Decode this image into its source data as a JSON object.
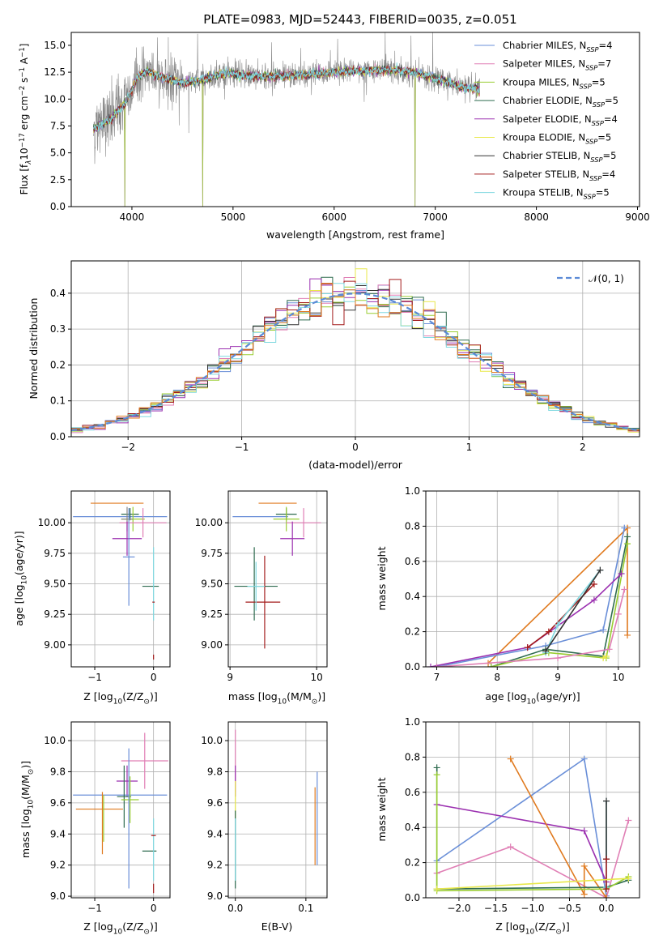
{
  "chart_data": [
    {
      "id": "spectrum",
      "type": "line",
      "title": "PLATE=0983, MJD=52443, FIBERID=0035, z=0.051",
      "xlabel": "wavelength [Angstrom, rest frame]",
      "ylabel": "Flux [f_λ 10^-17 erg cm^-2 s^-1 A^-1]",
      "ylabel_parts": {
        "main": "Flux [f",
        "lambda": "λ",
        "ten": "10",
        "exp1": "−17",
        "mid": " erg cm",
        "exp2": "−2",
        "s": " s",
        "exp3": "−1",
        "a": " A",
        "exp4": "−1",
        "end": "]"
      },
      "xlim": [
        3400,
        9020
      ],
      "ylim": [
        0,
        16.2
      ],
      "xticks": [
        4000,
        5000,
        6000,
        7000,
        8000,
        9000
      ],
      "yticks": [
        0.0,
        2.5,
        5.0,
        7.5,
        10.0,
        12.5,
        15.0
      ],
      "ytick_labels": [
        "0.0",
        "2.5",
        "5.0",
        "7.5",
        "10.0",
        "12.5",
        "15.0"
      ],
      "legend_position": "top-right",
      "legend": [
        {
          "name": "Chabrier MILES",
          "nssp": "4",
          "color": "#6a8fd8"
        },
        {
          "name": "Salpeter MILES",
          "nssp": "7",
          "color": "#e07fb5"
        },
        {
          "name": "Kroupa MILES",
          "nssp": "5",
          "color": "#9acd32"
        },
        {
          "name": "Chabrier ELODIE",
          "nssp": "5",
          "color": "#2e6b4f"
        },
        {
          "name": "Salpeter ELODIE",
          "nssp": "4",
          "color": "#9b30b0"
        },
        {
          "name": "Kroupa ELODIE",
          "nssp": "5",
          "color": "#e8e84a"
        },
        {
          "name": "Chabrier STELIB",
          "nssp": "5",
          "color": "#333333"
        },
        {
          "name": "Salpeter STELIB",
          "nssp": "4",
          "color": "#a31b1b"
        },
        {
          "name": "Kroupa STELIB",
          "nssp": "5",
          "color": "#7fd8e0"
        }
      ],
      "observed_data_color": "#888888",
      "model_trend": [
        [
          3620,
          7.2
        ],
        [
          3800,
          8.2
        ],
        [
          3950,
          9.8
        ],
        [
          4050,
          12.0
        ],
        [
          4150,
          12.6
        ],
        [
          4300,
          12.0
        ],
        [
          4500,
          11.5
        ],
        [
          4700,
          11.8
        ],
        [
          4900,
          12.4
        ],
        [
          5100,
          12.2
        ],
        [
          5300,
          12.1
        ],
        [
          5600,
          12.2
        ],
        [
          5900,
          12.4
        ],
        [
          6200,
          12.6
        ],
        [
          6500,
          12.7
        ],
        [
          6700,
          12.6
        ],
        [
          6900,
          12.2
        ],
        [
          7100,
          11.6
        ],
        [
          7300,
          11.0
        ],
        [
          7430,
          10.9
        ]
      ],
      "dips": [
        [
          3930,
          0.0
        ],
        [
          4700,
          0.0
        ],
        [
          6800,
          0.0
        ]
      ]
    },
    {
      "id": "residuals",
      "type": "histogram",
      "xlabel": "(data-model)/error",
      "ylabel": "Normed distribution",
      "xlim": [
        -2.5,
        2.5
      ],
      "ylim": [
        0,
        0.49
      ],
      "xticks": [
        -2,
        -1,
        0,
        1,
        2
      ],
      "xtick_labels": [
        "−2",
        "−1",
        "0",
        "1",
        "2"
      ],
      "yticks": [
        0.0,
        0.1,
        0.2,
        0.3,
        0.4
      ],
      "ytick_labels": [
        "0.0",
        "0.1",
        "0.2",
        "0.3",
        "0.4"
      ],
      "bin_width": 0.1,
      "legend": [
        {
          "name": "𝒩(0, 1)",
          "style": "dashed",
          "color": "#5b8ad6"
        }
      ],
      "legend_position": "top-right",
      "reference_curve": "standard normal pdf"
    },
    {
      "id": "age-vs-z",
      "type": "errorbar",
      "xlabel": "Z [log10(Z/Z⊙)]",
      "xlabel_parts": {
        "pre": "Z [log",
        "sub": "10",
        "mid": "(Z/Z",
        "sun": "⊙",
        "end": ")]"
      },
      "ylabel": "age [log10(age/yr)]",
      "ylabel_parts": {
        "pre": "age  [log",
        "sub": "10",
        "mid": "(age/yr)]"
      },
      "xlim": [
        -1.4,
        0.28
      ],
      "ylim": [
        8.82,
        10.26
      ],
      "xticks": [
        -1,
        0
      ],
      "xtick_labels": [
        "−1",
        "0"
      ],
      "yticks": [
        9.0,
        9.25,
        9.5,
        9.75,
        10.0
      ],
      "ytick_labels": [
        "9.00",
        "9.25",
        "9.50",
        "9.75",
        "10.00"
      ],
      "points": [
        {
          "x": -0.62,
          "y": 10.16,
          "xerr": 0.45,
          "yerr": 0.0,
          "color": "#e07a1f"
        },
        {
          "x": -0.57,
          "y": 10.05,
          "xerr": 0.8,
          "yerr": 0.0,
          "color": "#6a8fd8"
        },
        {
          "x": -0.4,
          "y": 10.07,
          "xerr": 0.15,
          "yerr": 0.05,
          "color": "#2e6b4f"
        },
        {
          "x": -0.35,
          "y": 10.03,
          "xerr": 0.2,
          "yerr": 0.1,
          "color": "#9acd32"
        },
        {
          "x": -0.18,
          "y": 10.0,
          "xerr": 0.4,
          "yerr": 0.12,
          "color": "#e07fb5"
        },
        {
          "x": -0.45,
          "y": 10.03,
          "xerr": 0.1,
          "yerr": 0.1,
          "color": "#888888"
        },
        {
          "x": -0.45,
          "y": 9.87,
          "xerr": 0.25,
          "yerr": 0.14,
          "color": "#9b30b0"
        },
        {
          "x": -0.42,
          "y": 9.72,
          "xerr": 0.1,
          "yerr": 0.4,
          "color": "#6a8fd8"
        },
        {
          "x": -0.05,
          "y": 9.48,
          "xerr": 0.14,
          "yerr": 0.0,
          "color": "#2e6b4f"
        },
        {
          "x": 0.0,
          "y": 9.5,
          "xerr": 0.0,
          "yerr": 0.3,
          "color": "#7fd8e0"
        },
        {
          "x": 0.0,
          "y": 9.35,
          "xerr": 0.02,
          "yerr": 0.0,
          "color": "#a31b1b"
        },
        {
          "x": 0.0,
          "y": 8.9,
          "xerr": 0.0,
          "yerr": 0.02,
          "color": "#a31b1b"
        }
      ]
    },
    {
      "id": "age-vs-mass",
      "type": "errorbar",
      "xlabel": "mass [log10(M/M⊙)]",
      "xlabel_parts": {
        "pre": "mass [log",
        "sub": "10",
        "mid": "(M/M",
        "sun": "⊙",
        "end": ")]"
      },
      "xlim": [
        8.98,
        10.12
      ],
      "ylim": [
        8.82,
        10.26
      ],
      "xticks": [
        9,
        10
      ],
      "xtick_labels": [
        "9",
        "10"
      ],
      "yticks": [
        9.0,
        9.25,
        9.5,
        9.75,
        10.0
      ],
      "ytick_labels": [
        "9.00",
        "9.25",
        "9.50",
        "9.75",
        "10.00"
      ],
      "points": [
        {
          "x": 9.55,
          "y": 10.16,
          "xerr": 0.22,
          "yerr": 0.0,
          "color": "#e07a1f"
        },
        {
          "x": 9.35,
          "y": 10.05,
          "xerr": 0.32,
          "yerr": 0.0,
          "color": "#6a8fd8"
        },
        {
          "x": 9.65,
          "y": 10.07,
          "xerr": 0.12,
          "yerr": 0.05,
          "color": "#2e6b4f"
        },
        {
          "x": 9.65,
          "y": 10.03,
          "xerr": 0.15,
          "yerr": 0.1,
          "color": "#9acd32"
        },
        {
          "x": 9.85,
          "y": 10.0,
          "xerr": 0.2,
          "yerr": 0.12,
          "color": "#e07fb5"
        },
        {
          "x": 9.72,
          "y": 9.87,
          "xerr": 0.14,
          "yerr": 0.14,
          "color": "#9b30b0"
        },
        {
          "x": 9.3,
          "y": 9.48,
          "xerr": 0.25,
          "yerr": 0.0,
          "color": "#2e6b4f"
        },
        {
          "x": 9.28,
          "y": 9.5,
          "xerr": 0.0,
          "yerr": 0.3,
          "color": "#2e6b4f"
        },
        {
          "x": 9.38,
          "y": 9.35,
          "xerr": 0.2,
          "yerr": 0.0,
          "color": "#a31b1b"
        },
        {
          "x": 9.4,
          "y": 9.35,
          "xerr": 0.0,
          "yerr": 0.38,
          "color": "#a31b1b"
        },
        {
          "x": 9.3,
          "y": 9.48,
          "xerr": 0.1,
          "yerr": 0.2,
          "color": "#7fd8e0"
        }
      ]
    },
    {
      "id": "massweight-vs-age",
      "type": "line",
      "xlabel": "age [log10(age/yr)]",
      "xlabel_parts": {
        "pre": "age  [log",
        "sub": "10",
        "mid": "(age/yr)]"
      },
      "ylabel": "mass weight",
      "xlim": [
        6.82,
        10.35
      ],
      "ylim": [
        0,
        1.0
      ],
      "xticks": [
        7,
        8,
        9,
        10
      ],
      "xtick_labels": [
        "7",
        "8",
        "9",
        "10"
      ],
      "yticks": [
        0.0,
        0.2,
        0.4,
        0.6,
        0.8,
        1.0
      ],
      "ytick_labels": [
        "0.0",
        "0.2",
        "0.4",
        "0.6",
        "0.8",
        "1.0"
      ],
      "series": [
        {
          "color": "#e07a1f",
          "x": [
            7.85,
            10.15,
            10.15
          ],
          "y": [
            0.02,
            0.79,
            0.18
          ]
        },
        {
          "color": "#6a8fd8",
          "x": [
            7.0,
            8.8,
            9.75,
            10.1
          ],
          "y": [
            0.0,
            0.12,
            0.21,
            0.79
          ]
        },
        {
          "color": "#2e6b4f",
          "x": [
            7.9,
            8.8,
            9.75,
            10.15
          ],
          "y": [
            0.0,
            0.1,
            0.06,
            0.74
          ]
        },
        {
          "color": "#9acd32",
          "x": [
            7.9,
            8.85,
            9.8,
            10.15
          ],
          "y": [
            0.0,
            0.08,
            0.05,
            0.7
          ]
        },
        {
          "color": "#9b30b0",
          "x": [
            6.9,
            8.5,
            9.6,
            10.05
          ],
          "y": [
            0.0,
            0.11,
            0.38,
            0.53
          ]
        },
        {
          "color": "#a31b1b",
          "x": [
            8.5,
            8.85,
            9.6
          ],
          "y": [
            0.11,
            0.2,
            0.47
          ]
        },
        {
          "color": "#e07fb5",
          "x": [
            7.0,
            9.0,
            9.85,
            10.0,
            10.1
          ],
          "y": [
            0.0,
            0.05,
            0.1,
            0.3,
            0.44
          ]
        },
        {
          "color": "#7fd8e0",
          "x": [
            8.8,
            9.0,
            9.7
          ],
          "y": [
            0.08,
            0.24,
            0.55
          ]
        },
        {
          "color": "#333333",
          "x": [
            8.8,
            9.7
          ],
          "y": [
            0.09,
            0.55
          ]
        },
        {
          "color": "#e8e84a",
          "x": [
            9.75,
            9.8
          ],
          "y": [
            0.05,
            0.06
          ]
        }
      ]
    },
    {
      "id": "mass-vs-z",
      "type": "errorbar",
      "xlabel": "Z [log10(Z/Z⊙)]",
      "xlabel_parts": {
        "pre": "Z [log",
        "sub": "10",
        "mid": "(Z/Z",
        "sun": "⊙",
        "end": ")]"
      },
      "ylabel": "mass [log10(M/M⊙)]",
      "ylabel_parts": {
        "pre": "mass [log",
        "sub": "10",
        "mid": "(M/M",
        "sun": "⊙",
        "end": ")]"
      },
      "xlim": [
        -1.4,
        0.28
      ],
      "ylim": [
        8.99,
        10.12
      ],
      "xticks": [
        -1,
        0
      ],
      "xtick_labels": [
        "−1",
        "0"
      ],
      "yticks": [
        9.0,
        9.2,
        9.4,
        9.6,
        9.8,
        10.0
      ],
      "ytick_labels": [
        "9.0",
        "9.2",
        "9.4",
        "9.6",
        "9.8",
        "10.0"
      ],
      "points": [
        {
          "x": -0.15,
          "y": 9.87,
          "xerr": 0.4,
          "yerr": 0.18,
          "color": "#e07fb5"
        },
        {
          "x": -0.45,
          "y": 9.74,
          "xerr": 0.18,
          "yerr": 0.1,
          "color": "#9b30b0"
        },
        {
          "x": -0.57,
          "y": 9.65,
          "xerr": 0.8,
          "yerr": 0.0,
          "color": "#6a8fd8"
        },
        {
          "x": -0.5,
          "y": 9.64,
          "xerr": 0.12,
          "yerr": 0.2,
          "color": "#2e6b4f"
        },
        {
          "x": -0.4,
          "y": 9.62,
          "xerr": 0.15,
          "yerr": 0.15,
          "color": "#9acd32"
        },
        {
          "x": -0.92,
          "y": 9.56,
          "xerr": 0.4,
          "yerr": 0.0,
          "color": "#e07a1f"
        },
        {
          "x": -0.87,
          "y": 9.47,
          "xerr": 0.0,
          "yerr": 0.2,
          "color": "#e07a1f"
        },
        {
          "x": -0.85,
          "y": 9.5,
          "xerr": 0.0,
          "yerr": 0.15,
          "color": "#9acd32"
        },
        {
          "x": -0.42,
          "y": 9.5,
          "xerr": 0.0,
          "yerr": 0.45,
          "color": "#6a8fd8"
        },
        {
          "x": -0.07,
          "y": 9.29,
          "xerr": 0.12,
          "yerr": 0.0,
          "color": "#2e6b4f"
        },
        {
          "x": 0.0,
          "y": 9.3,
          "xerr": 0.0,
          "yerr": 0.2,
          "color": "#7fd8e0"
        },
        {
          "x": 0.0,
          "y": 9.39,
          "xerr": 0.04,
          "yerr": 0.0,
          "color": "#a31b1b"
        },
        {
          "x": 0.0,
          "y": 9.05,
          "xerr": 0.0,
          "yerr": 0.03,
          "color": "#a31b1b"
        }
      ]
    },
    {
      "id": "mass-vs-ebv",
      "type": "errorbar",
      "xlabel": "E(B-V)",
      "xlim": [
        -0.01,
        0.13
      ],
      "ylim": [
        8.99,
        10.12
      ],
      "xticks": [
        0.0,
        0.1
      ],
      "xtick_labels": [
        "0.0",
        "0.1"
      ],
      "yticks": [
        9.0,
        9.2,
        9.4,
        9.6,
        9.8,
        10.0
      ],
      "ytick_labels": [
        "9.0",
        "9.2",
        "9.4",
        "9.6",
        "9.8",
        "10.0"
      ],
      "points": [
        {
          "x": 0.0,
          "y": 9.87,
          "xerr": 0.0,
          "yerr": 0.2,
          "color": "#e07fb5"
        },
        {
          "x": 0.0,
          "y": 9.74,
          "xerr": 0.0,
          "yerr": 0.1,
          "color": "#9b30b0"
        },
        {
          "x": 0.0,
          "y": 9.62,
          "xerr": 0.0,
          "yerr": 0.12,
          "color": "#e8e84a"
        },
        {
          "x": 0.0,
          "y": 9.3,
          "xerr": 0.0,
          "yerr": 0.25,
          "color": "#2e6b4f"
        },
        {
          "x": 0.0,
          "y": 9.3,
          "xerr": 0.0,
          "yerr": 0.2,
          "color": "#7fd8e0"
        },
        {
          "x": 0.113,
          "y": 9.45,
          "xerr": 0.0,
          "yerr": 0.25,
          "color": "#e07a1f"
        },
        {
          "x": 0.116,
          "y": 9.5,
          "xerr": 0.0,
          "yerr": 0.3,
          "color": "#6a8fd8"
        }
      ]
    },
    {
      "id": "massweight-vs-z",
      "type": "line",
      "xlabel": "Z [log10(Z/Z⊙)]",
      "xlabel_parts": {
        "pre": "Z [log",
        "sub": "10",
        "mid": "(Z/Z",
        "sun": "⊙",
        "end": ")]"
      },
      "ylabel": "mass weight",
      "xlim": [
        -2.45,
        0.45
      ],
      "ylim": [
        0,
        1.0
      ],
      "xticks": [
        -2.0,
        -1.5,
        -1.0,
        -0.5,
        0.0
      ],
      "xtick_labels": [
        "−2.0",
        "−1.5",
        "−1.0",
        "−0.5",
        "0.0"
      ],
      "yticks": [
        0.0,
        0.2,
        0.4,
        0.6,
        0.8,
        1.0
      ],
      "ytick_labels": [
        "0.0",
        "0.2",
        "0.4",
        "0.6",
        "0.8",
        "1.0"
      ],
      "series": [
        {
          "color": "#6a8fd8",
          "x": [
            -2.3,
            -0.3,
            0.0
          ],
          "y": [
            0.21,
            0.79,
            0.01
          ]
        },
        {
          "color": "#9b30b0",
          "x": [
            -2.3,
            -0.3,
            0.0
          ],
          "y": [
            0.53,
            0.38,
            0.09
          ]
        },
        {
          "color": "#e07fb5",
          "x": [
            -2.3,
            -1.3,
            0.0,
            0.3
          ],
          "y": [
            0.14,
            0.29,
            0.0,
            0.44
          ]
        },
        {
          "color": "#e07a1f",
          "x": [
            -1.3,
            -0.3,
            -0.3,
            0.0
          ],
          "y": [
            0.79,
            0.02,
            0.18,
            0.0
          ]
        },
        {
          "color": "#2e6b4f",
          "x": [
            -2.3,
            -2.3,
            0.0,
            0.3
          ],
          "y": [
            0.74,
            0.05,
            0.06,
            0.1
          ]
        },
        {
          "color": "#9acd32",
          "x": [
            -2.3,
            -2.3,
            0.0,
            0.3
          ],
          "y": [
            0.7,
            0.04,
            0.05,
            0.12
          ]
        },
        {
          "color": "#7fd8e0",
          "x": [
            0.0,
            0.0
          ],
          "y": [
            0.06,
            0.55
          ]
        },
        {
          "color": "#333333",
          "x": [
            0.0,
            0.0
          ],
          "y": [
            0.22,
            0.55
          ]
        },
        {
          "color": "#a31b1b",
          "x": [
            0.0,
            0.0
          ],
          "y": [
            0.05,
            0.22
          ]
        },
        {
          "color": "#e8e84a",
          "x": [
            -2.3,
            0.3
          ],
          "y": [
            0.05,
            0.11
          ]
        }
      ]
    }
  ]
}
